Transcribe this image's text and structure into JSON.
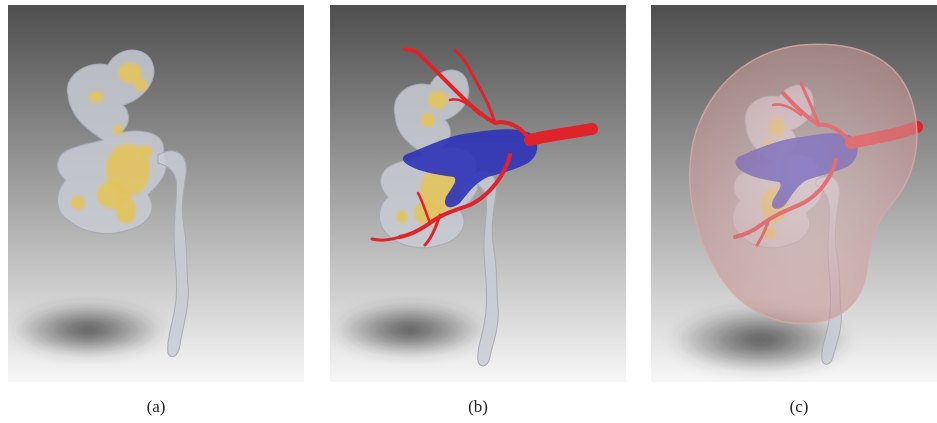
{
  "figure": {
    "panels": [
      {
        "id": "a",
        "caption": "(a)"
      },
      {
        "id": "b",
        "caption": "(b)"
      },
      {
        "id": "c",
        "caption": "(c)"
      }
    ]
  },
  "colors": {
    "background_top": "#505050",
    "background_bottom": "#f6f6f6",
    "collecting_system": "#c9cbd4",
    "stones": "#e3c35c",
    "artery": "#e0232b",
    "vein": "#2e33b8",
    "kidney_parenchyma": "#e8b8b8"
  }
}
